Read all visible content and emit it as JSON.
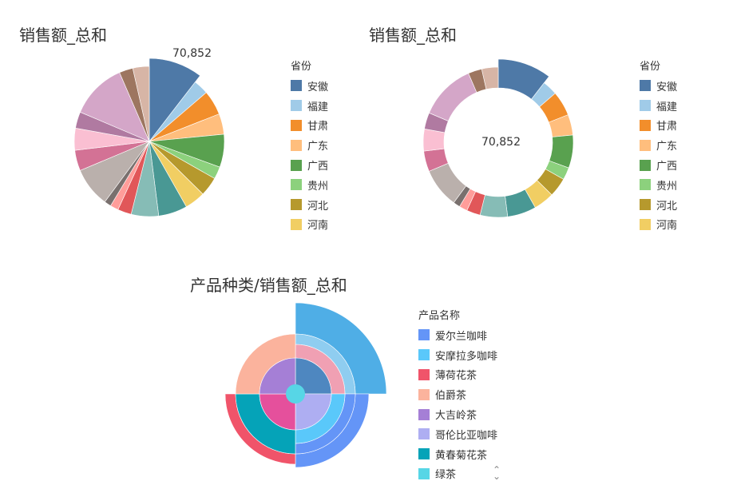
{
  "charts": {
    "pie": {
      "title": "销售额_总和",
      "highlight_label": "70,852"
    },
    "donut": {
      "title": "销售额_总和",
      "center_label": "70,852"
    },
    "sunburst": {
      "title": "产品种类/销售额_总和"
    }
  },
  "legend_province": {
    "title": "省份",
    "items": [
      {
        "label": "安徽",
        "color": "#4e79a7"
      },
      {
        "label": "福建",
        "color": "#a0cbe8"
      },
      {
        "label": "甘肃",
        "color": "#f28e2b"
      },
      {
        "label": "广东",
        "color": "#ffbe7d"
      },
      {
        "label": "广西",
        "color": "#59a14f"
      },
      {
        "label": "贵州",
        "color": "#8cd17d"
      },
      {
        "label": "河北",
        "color": "#b6992d"
      },
      {
        "label": "河南",
        "color": "#f1ce63"
      }
    ],
    "scroll_icon": "chevron-down-icon"
  },
  "legend_product": {
    "title": "产品名称",
    "items": [
      {
        "label": "爱尔兰咖啡",
        "color": "#6495f7"
      },
      {
        "label": "安摩拉多咖啡",
        "color": "#5ac8fa"
      },
      {
        "label": "薄荷花茶",
        "color": "#f0546a"
      },
      {
        "label": "伯爵茶",
        "color": "#fbb39d"
      },
      {
        "label": "大吉岭茶",
        "color": "#a57fd6"
      },
      {
        "label": "哥伦比亚咖啡",
        "color": "#aeaef2"
      },
      {
        "label": "黄春菊花茶",
        "color": "#05a3b8"
      },
      {
        "label": "绿茶",
        "color": "#57d6e6"
      }
    ],
    "scroll_icon": "chevron-updown-icon"
  },
  "chart_data": [
    {
      "type": "pie",
      "title": "销售额_总和",
      "legend_title": "省份",
      "highlighted": {
        "label": "安徽",
        "value": 70852
      },
      "slices": [
        {
          "label": "安徽",
          "value": 70852,
          "color": "#4e79a7"
        },
        {
          "label": "福建",
          "value": 22000,
          "color": "#a0cbe8"
        },
        {
          "label": "甘肃",
          "value": 36000,
          "color": "#f28e2b"
        },
        {
          "label": "广东",
          "value": 30000,
          "color": "#ffbe7d"
        },
        {
          "label": "广西",
          "value": 48000,
          "color": "#59a14f"
        },
        {
          "label": "贵州",
          "value": 18000,
          "color": "#8cd17d"
        },
        {
          "label": "河北",
          "value": 28000,
          "color": "#b6992d"
        },
        {
          "label": "河南",
          "value": 30000,
          "color": "#f1ce63"
        },
        {
          "label": "",
          "value": 42000,
          "color": "#499894"
        },
        {
          "label": "",
          "value": 40000,
          "color": "#86bcb6"
        },
        {
          "label": "",
          "value": 20000,
          "color": "#e15759"
        },
        {
          "label": "",
          "value": 12000,
          "color": "#ff9d9a"
        },
        {
          "label": "",
          "value": 10000,
          "color": "#79706e"
        },
        {
          "label": "",
          "value": 58000,
          "color": "#bab0ac"
        },
        {
          "label": "",
          "value": 30000,
          "color": "#d37295"
        },
        {
          "label": "",
          "value": 32000,
          "color": "#fabfd2"
        },
        {
          "label": "",
          "value": 24000,
          "color": "#b07aa1"
        },
        {
          "label": "",
          "value": 82000,
          "color": "#d4a6c8"
        },
        {
          "label": "",
          "value": 20000,
          "color": "#9d7660"
        },
        {
          "label": "",
          "value": 24000,
          "color": "#d7b5a6"
        }
      ]
    },
    {
      "type": "pie",
      "variant": "donut",
      "title": "销售额_总和",
      "center_label": "70,852",
      "legend_title": "省份",
      "slices_ref": "same as first chart"
    },
    {
      "type": "sunburst",
      "title": "产品种类/销售额_总和",
      "legend_title": "产品名称",
      "quadrants": [
        {
          "inner": {
            "color": "#4e87c0",
            "value": 25
          },
          "middle": {
            "color": "#f0a0b3",
            "value": 25
          },
          "outer": {
            "color": "#8fcdf0",
            "value": 25
          },
          "outer2": {
            "color": "#4faee6",
            "value": 25
          }
        },
        {
          "inner": {
            "color": "#aeaef2",
            "value": 25
          },
          "middle": {
            "color": "#5ac8fa",
            "value": 25
          },
          "outer": {
            "color": "#6495f7",
            "value": 25
          }
        },
        {
          "inner": {
            "color": "#e5509c",
            "value": 25
          },
          "middle": {
            "color": "#05a3b8",
            "value": 25
          },
          "outer": {
            "color": "#f0546a",
            "value": 25
          }
        },
        {
          "inner": {
            "color": "#a57fd6",
            "value": 25
          },
          "middle": {
            "color": "#fbb39d",
            "value": 25
          }
        }
      ]
    }
  ]
}
